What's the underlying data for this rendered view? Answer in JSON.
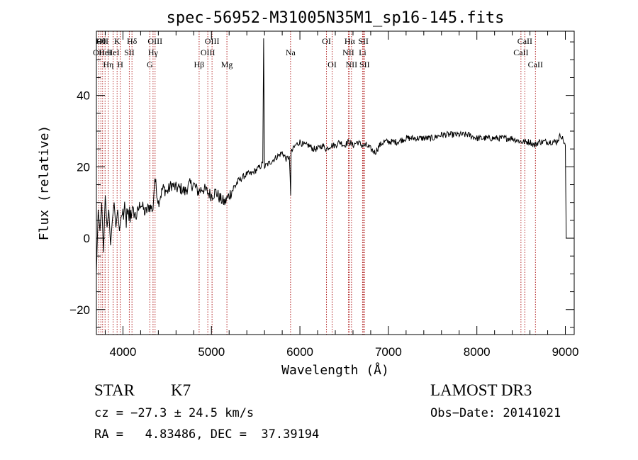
{
  "chart_data": {
    "type": "line",
    "title": "spec-56952-M31005N35M1_sp16-145.fits",
    "xlabel": "Wavelength (Å)",
    "ylabel": "Flux (relative)",
    "xlim": [
      3700,
      9100
    ],
    "ylim": [
      -27,
      58
    ],
    "x_ticks": [
      4000,
      5000,
      6000,
      7000,
      8000,
      9000
    ],
    "x_tick_labels": [
      "4000",
      "5000",
      "6000",
      "7000",
      "8000",
      "9000"
    ],
    "y_ticks": [
      -20,
      0,
      20,
      40
    ],
    "y_tick_labels": [
      "−20",
      "0",
      "20",
      "40"
    ],
    "grid": false,
    "series": [
      {
        "name": "flux",
        "color": "#000000",
        "x": [
          3700,
          3720,
          3740,
          3760,
          3780,
          3800,
          3820,
          3840,
          3860,
          3880,
          3900,
          3920,
          3940,
          3960,
          3980,
          4000,
          4050,
          4100,
          4150,
          4200,
          4250,
          4300,
          4340,
          4360,
          4400,
          4450,
          4500,
          4550,
          4600,
          4650,
          4700,
          4750,
          4800,
          4850,
          4900,
          4950,
          5000,
          5050,
          5100,
          5150,
          5200,
          5250,
          5300,
          5350,
          5400,
          5450,
          5500,
          5550,
          5580,
          5590,
          5600,
          5650,
          5700,
          5750,
          5800,
          5850,
          5880,
          5890,
          5895,
          5900,
          5950,
          6000,
          6050,
          6100,
          6150,
          6200,
          6250,
          6300,
          6350,
          6400,
          6450,
          6500,
          6550,
          6600,
          6650,
          6700,
          6750,
          6800,
          6850,
          6900,
          6950,
          7000,
          7100,
          7200,
          7300,
          7400,
          7500,
          7600,
          7700,
          7800,
          7900,
          8000,
          8100,
          8200,
          8300,
          8400,
          8500,
          8600,
          8650,
          8700,
          8800,
          8900,
          8950,
          9000,
          9010
        ],
        "y": [
          -10,
          8,
          2,
          10,
          -4,
          12,
          3,
          8,
          -2,
          5,
          10,
          3,
          8,
          2,
          6,
          7,
          5,
          8,
          6,
          10,
          7,
          9,
          8,
          17,
          10,
          14,
          13,
          15,
          14,
          14,
          13,
          15,
          15,
          13,
          14,
          13,
          12,
          13,
          11,
          10,
          12,
          14,
          16,
          17,
          18,
          18,
          19,
          20,
          21,
          56,
          20,
          21,
          22,
          23,
          24,
          22,
          23,
          17,
          12,
          24,
          26,
          27,
          26,
          26,
          25,
          25,
          26,
          25,
          26,
          26,
          27,
          26,
          27,
          26,
          27,
          26,
          26,
          25,
          24,
          26,
          27,
          27,
          27,
          28,
          28,
          28,
          28,
          29,
          29,
          29,
          29,
          28,
          28,
          28,
          28,
          28,
          27,
          27,
          26,
          27,
          27,
          27,
          29,
          26,
          0
        ]
      }
    ],
    "lines": [
      {
        "x": 3727,
        "label": "OII",
        "row": 2
      },
      {
        "x": 3750,
        "label": "Hθ",
        "row": 1
      },
      {
        "x": 3770,
        "label": "OII",
        "row": 1
      },
      {
        "x": 3798,
        "label": "HeI",
        "row": 2
      },
      {
        "x": 3835,
        "label": "Hη",
        "row": 3
      },
      {
        "x": 3889,
        "label": "HeI",
        "row": 2
      },
      {
        "x": 3934,
        "label": "K",
        "row": 1
      },
      {
        "x": 3969,
        "label": "H",
        "row": 3
      },
      {
        "x": 4072,
        "label": "SII",
        "row": 2
      },
      {
        "x": 4102,
        "label": "Hδ",
        "row": 1
      },
      {
        "x": 4304,
        "label": "G",
        "row": 3
      },
      {
        "x": 4340,
        "label": "Hγ",
        "row": 2
      },
      {
        "x": 4363,
        "label": "OIII",
        "row": 1
      },
      {
        "x": 4861,
        "label": "Hβ",
        "row": 3
      },
      {
        "x": 4959,
        "label": "OIII",
        "row": 2
      },
      {
        "x": 5007,
        "label": "OIII",
        "row": 1
      },
      {
        "x": 5175,
        "label": "Mg",
        "row": 3
      },
      {
        "x": 5894,
        "label": "Na",
        "row": 2
      },
      {
        "x": 6300,
        "label": "OI",
        "row": 1
      },
      {
        "x": 6364,
        "label": "OI",
        "row": 3
      },
      {
        "x": 6548,
        "label": "NII",
        "row": 2
      },
      {
        "x": 6563,
        "label": "Hα",
        "row": 1
      },
      {
        "x": 6583,
        "label": "NII",
        "row": 3
      },
      {
        "x": 6708,
        "label": "Li",
        "row": 2
      },
      {
        "x": 6717,
        "label": "SII",
        "row": 1
      },
      {
        "x": 6731,
        "label": "SII",
        "row": 3
      },
      {
        "x": 8498,
        "label": "CaII",
        "row": 2
      },
      {
        "x": 8542,
        "label": "CaII",
        "row": 1
      },
      {
        "x": 8662,
        "label": "CaII",
        "row": 3
      }
    ],
    "line_color": "#b22222"
  },
  "info": {
    "obj_class": "STAR",
    "subclass": "K7",
    "survey": "LAMOST DR3",
    "cz": "cz = −27.3 ± 24.5 km/s",
    "obs_date": "Obs−Date: 20141021",
    "coords": "RA =   4.83486, DEC =  37.39194"
  }
}
